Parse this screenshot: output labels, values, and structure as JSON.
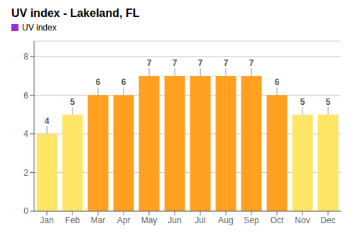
{
  "chart_data": {
    "type": "bar",
    "title": "UV index - Lakeland, FL",
    "categories": [
      "Jan",
      "Feb",
      "Mar",
      "Apr",
      "May",
      "Jun",
      "Jul",
      "Aug",
      "Sep",
      "Oct",
      "Nov",
      "Dec"
    ],
    "series": [
      {
        "name": "UV index",
        "color": "#9b30d0",
        "colors": [
          "#ffe566",
          "#ffe566",
          "#ffa020",
          "#ffa020",
          "#ffa020",
          "#ffa020",
          "#ffa020",
          "#ffa020",
          "#ffa020",
          "#ffa020",
          "#ffe566",
          "#ffe566"
        ],
        "values": [
          4,
          5,
          6,
          6,
          7,
          7,
          7,
          7,
          7,
          6,
          5,
          5
        ],
        "errors": [
          0.4,
          0.4,
          0.4,
          0.4,
          0.4,
          0.4,
          0.4,
          0.4,
          0.4,
          0.4,
          0.4,
          0.4
        ]
      }
    ],
    "ylim": [
      0,
      8.8
    ],
    "yticks": [
      0,
      2,
      4,
      6,
      8
    ],
    "grid": true,
    "legend": "upper left",
    "data_labels": true
  }
}
